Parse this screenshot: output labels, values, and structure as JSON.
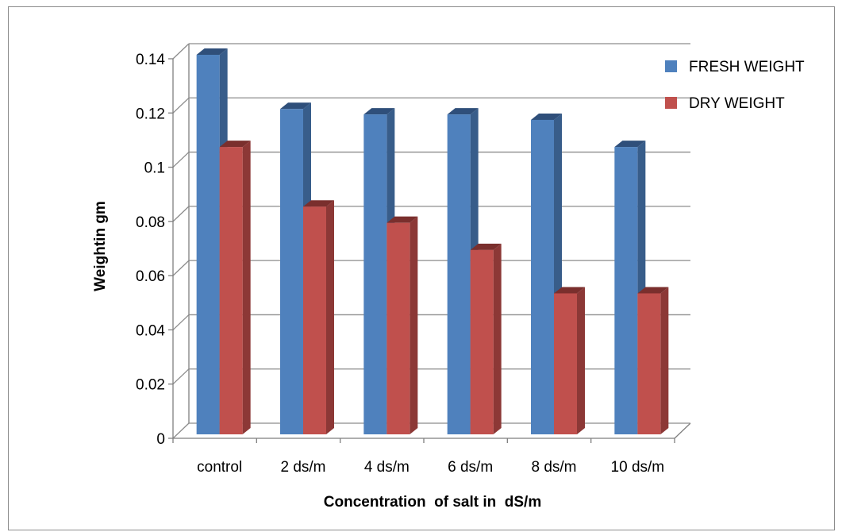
{
  "chart_data": {
    "type": "bar",
    "title": "",
    "xlabel": "Concentration  of salt in  dS/m",
    "ylabel": "Weightin gm",
    "categories": [
      "control",
      "2 ds/m",
      "4 ds/m",
      "6 ds/m",
      "8 ds/m",
      "10 ds/m"
    ],
    "series": [
      {
        "name": "FRESH WEIGHT",
        "values": [
          0.14,
          0.12,
          0.118,
          0.118,
          0.116,
          0.106
        ],
        "color": "#4f81bd",
        "side_color": "#385d8a",
        "top_color": "#2f4f7a"
      },
      {
        "name": "DRY WEIGHT",
        "values": [
          0.106,
          0.084,
          0.078,
          0.068,
          0.052,
          0.052
        ],
        "color": "#c0504d",
        "side_color": "#8c3836",
        "top_color": "#7a2f2d"
      }
    ],
    "ylim": [
      0,
      0.14
    ],
    "yticks": [
      "0",
      "0.02",
      "0.04",
      "0.06",
      "0.08",
      "0.1",
      "0.12",
      "0.14"
    ],
    "grid": true,
    "legend": "top-right",
    "style": "3d-clustered-column"
  }
}
